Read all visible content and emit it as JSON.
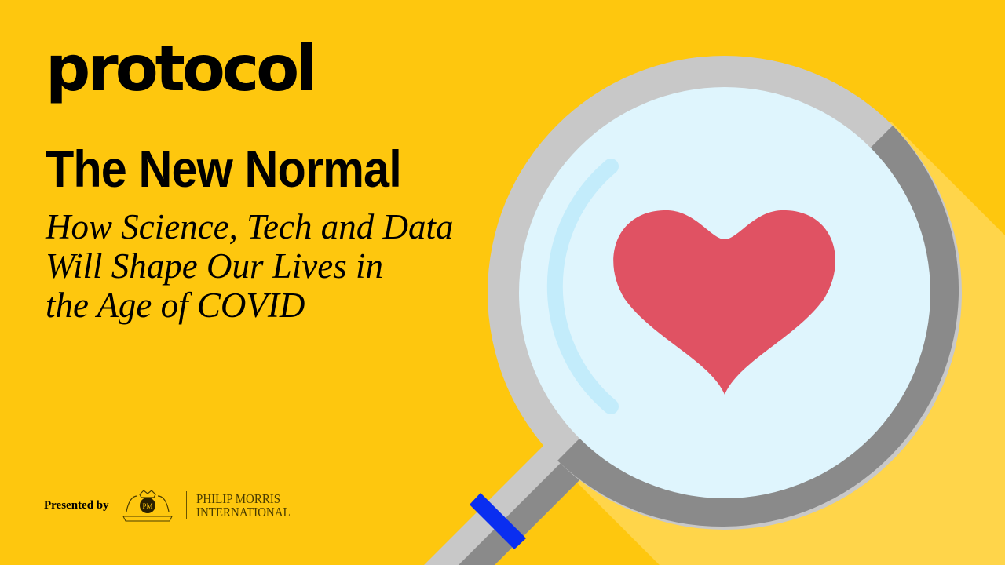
{
  "brand": {
    "logo": "protocol"
  },
  "headline": {
    "title": "The New Normal",
    "subtitle_lines": [
      "How Science, Tech and Data",
      "Will Shape Our Lives in",
      "the Age of COVID"
    ]
  },
  "sponsor": {
    "presented_by": "Presented by",
    "name_line1": "PHILIP MORRIS",
    "name_line2": "INTERNATIONAL",
    "crest_text": "PM"
  },
  "illustration": {
    "subject": "magnifying-glass-over-heart",
    "colors": {
      "background": "#FEC70E",
      "shadow": "#FFD54A",
      "lens": "#DFF5FD",
      "rim_light": "#C8C8C8",
      "rim_dark": "#888888",
      "heart": "#E05263",
      "band": "#0A2EF0"
    }
  }
}
